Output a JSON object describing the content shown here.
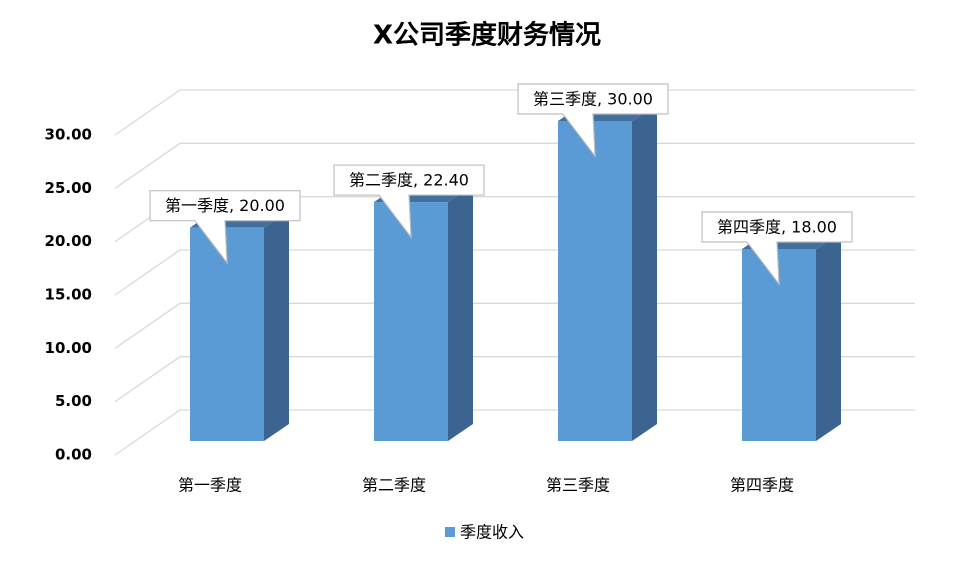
{
  "chart_data": {
    "type": "bar3d",
    "title": "X公司季度财务情况",
    "categories": [
      "第一季度",
      "第二季度",
      "第三季度",
      "第四季度"
    ],
    "series": [
      {
        "name": "季度收入",
        "color": "#5b9bd5",
        "values": [
          20,
          22.4,
          30,
          18
        ],
        "value_labels": [
          "第一季度, 20.00",
          "第二季度, 22.40",
          "第三季度, 30.00",
          "第四季度, 18.00"
        ]
      }
    ],
    "ylim": [
      0,
      30
    ],
    "yticks": [
      {
        "value": 0,
        "label": "0.00"
      },
      {
        "value": 5,
        "label": "5.00"
      },
      {
        "value": 10,
        "label": "10.00"
      },
      {
        "value": 15,
        "label": "15.00"
      },
      {
        "value": 20,
        "label": "20.00"
      },
      {
        "value": 25,
        "label": "25.00"
      },
      {
        "value": 30,
        "label": "30.00"
      }
    ],
    "grid": true,
    "legend": "bottom"
  }
}
